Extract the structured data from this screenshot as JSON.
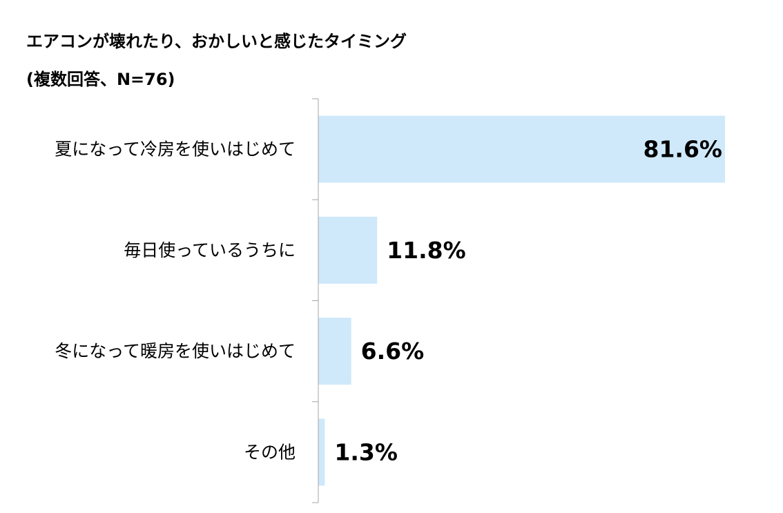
{
  "title": {
    "line1": "エアコンが壊れたり、おかしいと感じたタイミング",
    "line2": "(複数回答、N=76)"
  },
  "colors": {
    "bar": "#cfe9fb",
    "axis": "#a6a6a6",
    "text": "#000000"
  },
  "chart_data": {
    "type": "bar",
    "orientation": "horizontal",
    "categories": [
      "夏になって冷房を使いはじめて",
      "毎日使っているうちに",
      "冬になって暖房を使いはじめて",
      "その他"
    ],
    "values": [
      81.6,
      11.8,
      6.6,
      1.3
    ],
    "value_labels": [
      "81.6%",
      "11.8%",
      "6.6%",
      "1.3%"
    ],
    "xlim": [
      0,
      81.6
    ],
    "grid": false,
    "legend": "none"
  }
}
